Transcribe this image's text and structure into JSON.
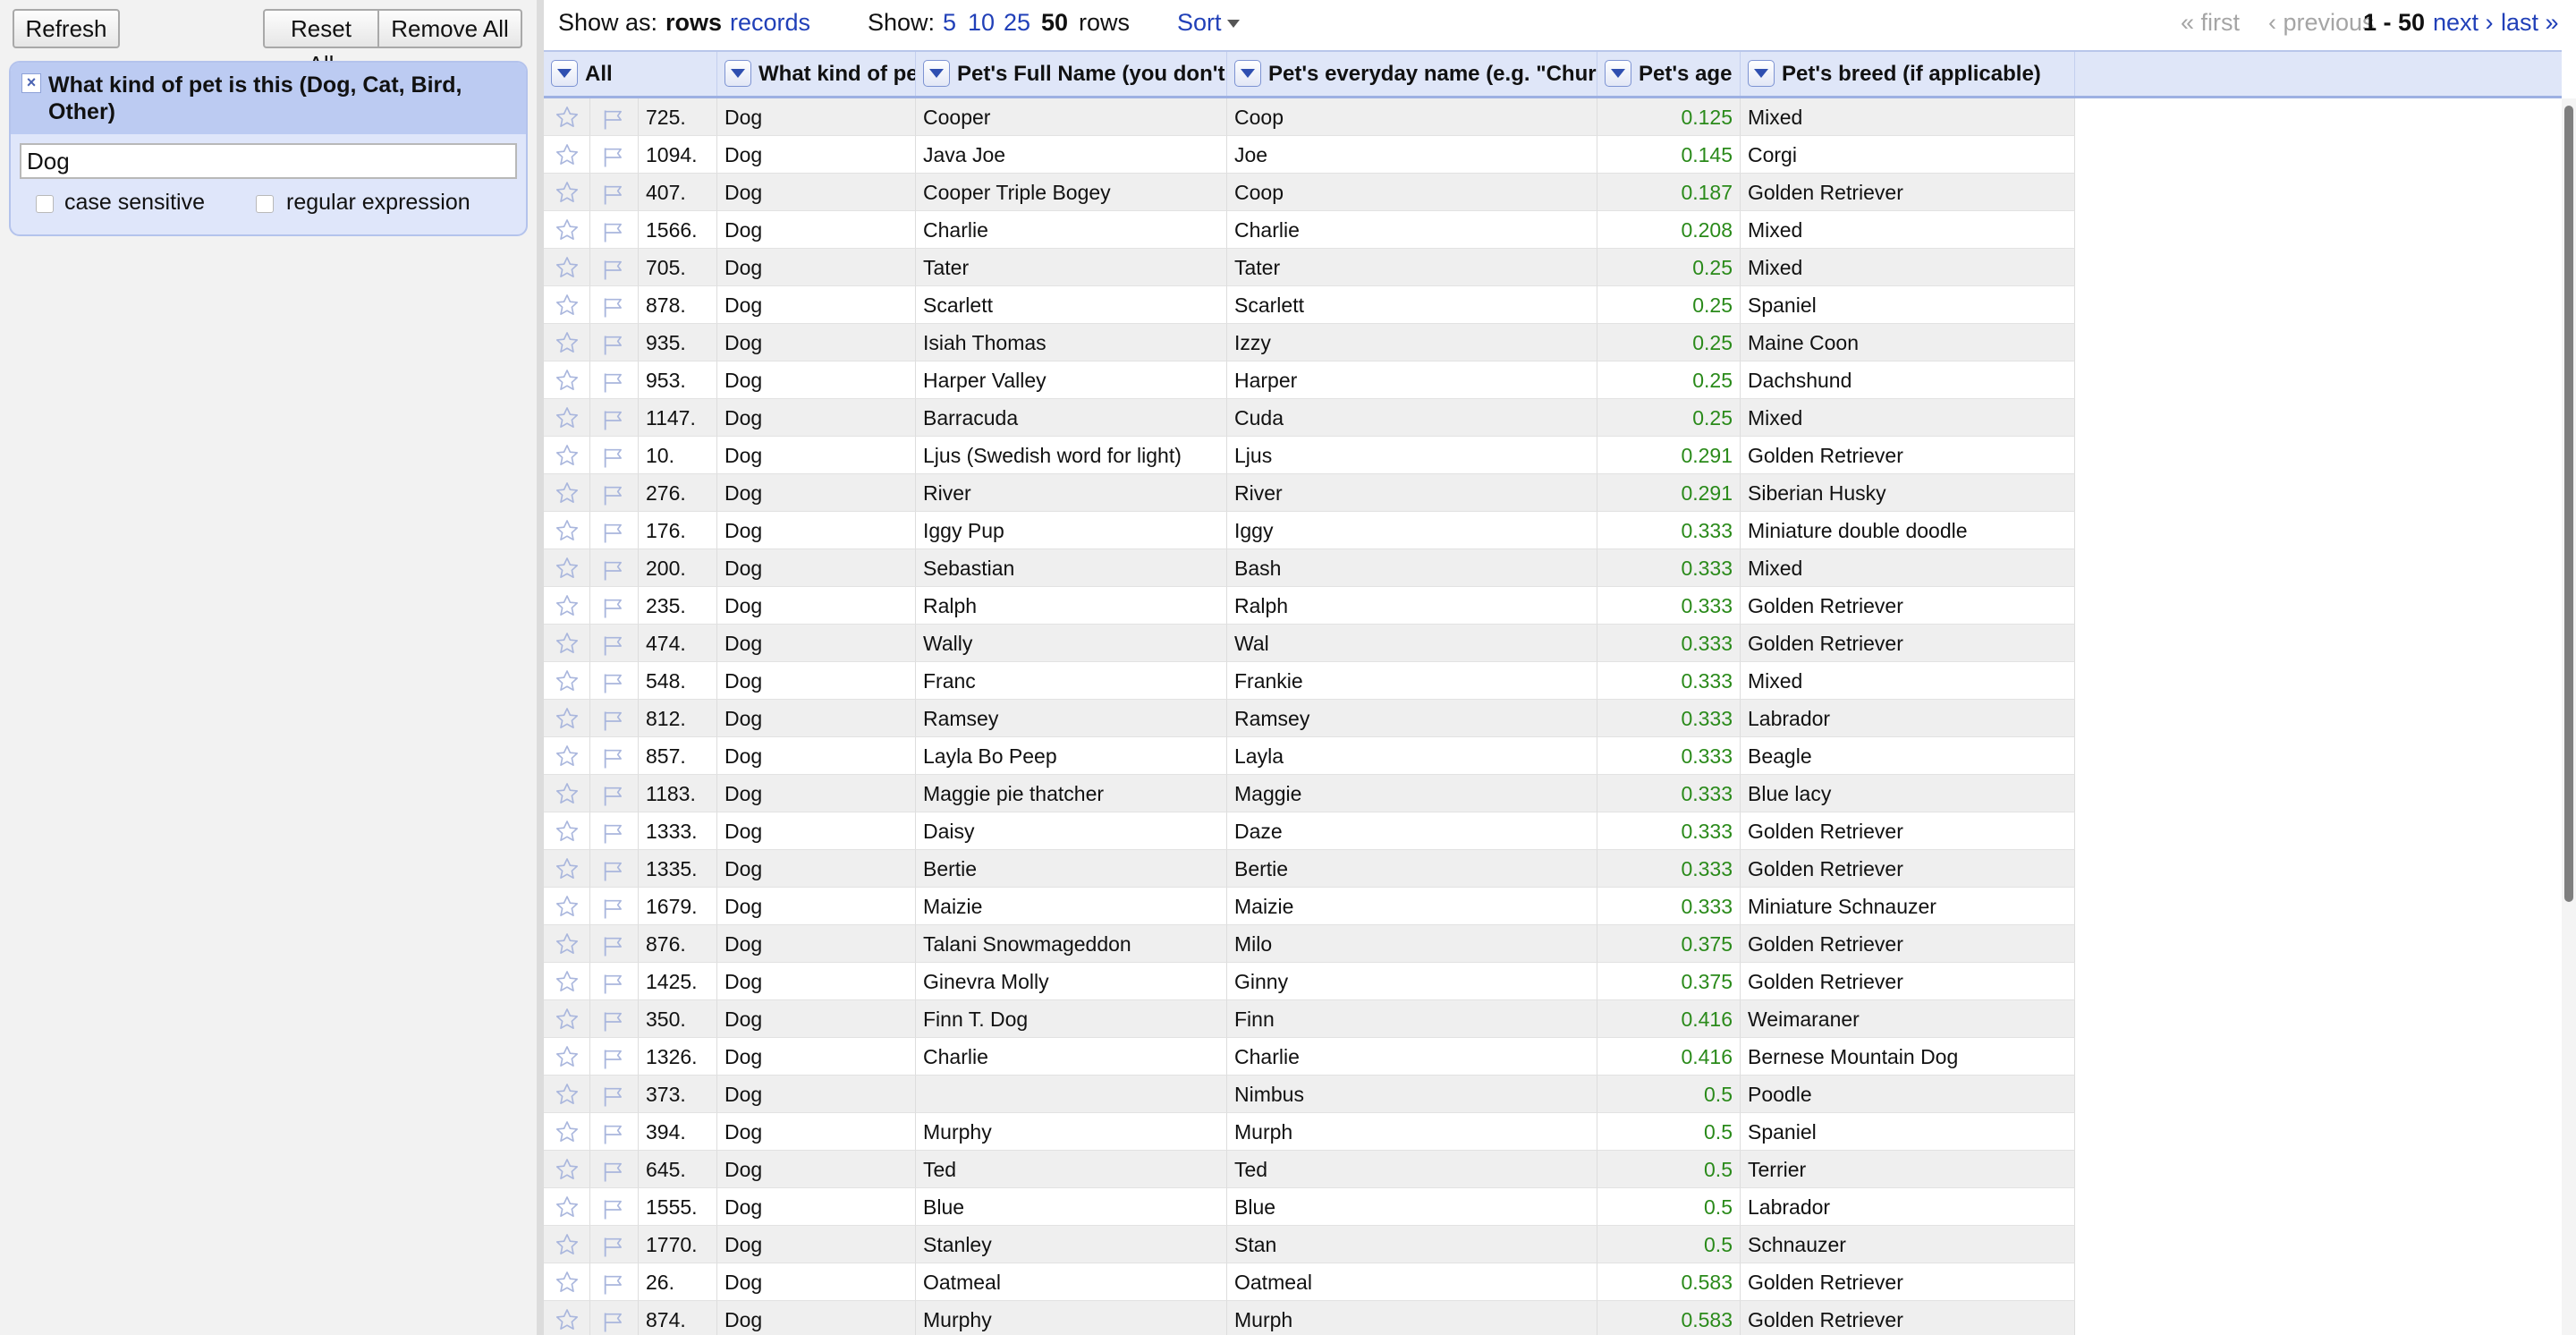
{
  "left_panel": {
    "refresh": "Refresh",
    "reset_all": "Reset All",
    "remove_all": "Remove All",
    "facet": {
      "close": "×",
      "title": "What kind of pet is this (Dog, Cat, Bird, Other)",
      "value": "Dog",
      "case_sensitive": "case sensitive",
      "regular_expression": "regular expression"
    }
  },
  "top_bar": {
    "show_as": "Show as:",
    "rows": "rows",
    "records": "records",
    "show": "Show:",
    "page_sizes": [
      "5",
      "10",
      "25",
      "50"
    ],
    "rows_suffix": "rows",
    "sort": "Sort",
    "first": "« first",
    "previous": "‹ previous",
    "range": "1 - 50",
    "next": "next ›",
    "last": "last »"
  },
  "columns": [
    "All",
    "What kind of pet",
    "Pet's Full Name (you don't ha",
    "Pet's everyday name (e.g. \"Church",
    "Pet's age",
    "Pet's breed (if applicable)"
  ],
  "rows": [
    [
      "725.",
      "Dog",
      "Cooper",
      "Coop",
      "0.125",
      "Mixed"
    ],
    [
      "1094.",
      "Dog",
      "Java Joe",
      "Joe",
      "0.145",
      "Corgi"
    ],
    [
      "407.",
      "Dog",
      "Cooper Triple Bogey",
      "Coop",
      "0.187",
      "Golden Retriever"
    ],
    [
      "1566.",
      "Dog",
      "Charlie",
      "Charlie",
      "0.208",
      "Mixed"
    ],
    [
      "705.",
      "Dog",
      "Tater",
      "Tater",
      "0.25",
      "Mixed"
    ],
    [
      "878.",
      "Dog",
      "Scarlett",
      "Scarlett",
      "0.25",
      "Spaniel"
    ],
    [
      "935.",
      "Dog",
      "Isiah Thomas",
      "Izzy",
      "0.25",
      "Maine Coon"
    ],
    [
      "953.",
      "Dog",
      "Harper Valley",
      "Harper",
      "0.25",
      "Dachshund"
    ],
    [
      "1147.",
      "Dog",
      "Barracuda",
      "Cuda",
      "0.25",
      "Mixed"
    ],
    [
      "10.",
      "Dog",
      "Ljus (Swedish word for light)",
      "Ljus",
      "0.291",
      "Golden Retriever"
    ],
    [
      "276.",
      "Dog",
      "River",
      "River",
      "0.291",
      "Siberian Husky"
    ],
    [
      "176.",
      "Dog",
      "Iggy Pup",
      "Iggy",
      "0.333",
      "Miniature double doodle"
    ],
    [
      "200.",
      "Dog",
      "Sebastian",
      "Bash",
      "0.333",
      "Mixed"
    ],
    [
      "235.",
      "Dog",
      "Ralph",
      "Ralph",
      "0.333",
      "Golden Retriever"
    ],
    [
      "474.",
      "Dog",
      "Wally",
      "Wal",
      "0.333",
      "Golden Retriever"
    ],
    [
      "548.",
      "Dog",
      "Franc",
      "Frankie",
      "0.333",
      "Mixed"
    ],
    [
      "812.",
      "Dog",
      "Ramsey",
      "Ramsey",
      "0.333",
      "Labrador"
    ],
    [
      "857.",
      "Dog",
      "Layla Bo Peep",
      "Layla",
      "0.333",
      "Beagle"
    ],
    [
      "1183.",
      "Dog",
      "Maggie pie thatcher",
      "Maggie",
      "0.333",
      "Blue lacy"
    ],
    [
      "1333.",
      "Dog",
      "Daisy",
      "Daze",
      "0.333",
      "Golden Retriever"
    ],
    [
      "1335.",
      "Dog",
      "Bertie",
      "Bertie",
      "0.333",
      "Golden Retriever"
    ],
    [
      "1679.",
      "Dog",
      "Maizie",
      "Maizie",
      "0.333",
      "Miniature Schnauzer"
    ],
    [
      "876.",
      "Dog",
      "Talani Snowmageddon",
      "Milo",
      "0.375",
      "Golden Retriever"
    ],
    [
      "1425.",
      "Dog",
      "Ginevra Molly",
      "Ginny",
      "0.375",
      "Golden Retriever"
    ],
    [
      "350.",
      "Dog",
      "Finn T. Dog",
      "Finn",
      "0.416",
      "Weimaraner"
    ],
    [
      "1326.",
      "Dog",
      "Charlie",
      "Charlie",
      "0.416",
      "Bernese Mountain Dog"
    ],
    [
      "373.",
      "Dog",
      "",
      "Nimbus",
      "0.5",
      "Poodle"
    ],
    [
      "394.",
      "Dog",
      "Murphy",
      "Murph",
      "0.5",
      "Spaniel"
    ],
    [
      "645.",
      "Dog",
      "Ted",
      "Ted",
      "0.5",
      "Terrier"
    ],
    [
      "1555.",
      "Dog",
      "Blue",
      "Blue",
      "0.5",
      "Labrador"
    ],
    [
      "1770.",
      "Dog",
      "Stanley",
      "Stan",
      "0.5",
      "Schnauzer"
    ],
    [
      "26.",
      "Dog",
      "Oatmeal",
      "Oatmeal",
      "0.583",
      "Golden Retriever"
    ],
    [
      "874.",
      "Dog",
      "Murphy",
      "Murph",
      "0.583",
      "Golden Retriever"
    ]
  ],
  "icons": {
    "star": "star-icon",
    "flag": "flag-icon",
    "dropdown": "dropdown-arrow-icon",
    "close": "close-icon"
  },
  "colors": {
    "facet_bg": "#dfe6fa",
    "facet_header": "#bccbf2",
    "link": "#2140b8",
    "age_text": "#2a8a1a",
    "header_bg": "#dfe6f8"
  }
}
